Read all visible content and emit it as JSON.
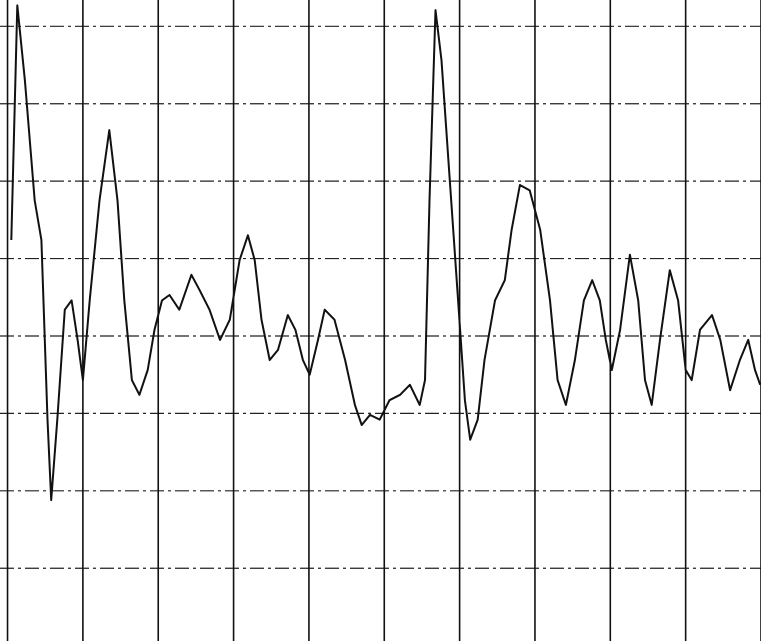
{
  "chart_data": {
    "type": "line",
    "color": "#111111",
    "grid": true,
    "xlim": [
      -0.1,
      10
    ],
    "ylim": [
      -3.94,
      4.34
    ],
    "xticks": [
      0,
      1,
      2,
      3,
      4,
      5,
      6,
      7,
      8,
      9,
      10
    ],
    "yticks": [
      -3,
      -2,
      -1,
      0,
      1,
      2,
      3,
      4
    ],
    "x": [
      0.05,
      0.13,
      0.23,
      0.36,
      0.45,
      0.53,
      0.58,
      0.66,
      0.76,
      0.85,
      0.93,
      1.0,
      1.09,
      1.22,
      1.35,
      1.46,
      1.55,
      1.65,
      1.75,
      1.86,
      1.95,
      2.05,
      2.15,
      2.28,
      2.44,
      2.55,
      2.68,
      2.82,
      2.95,
      3.08,
      3.19,
      3.28,
      3.37,
      3.48,
      3.59,
      3.72,
      3.82,
      3.92,
      4.01,
      4.12,
      4.21,
      4.34,
      4.48,
      4.61,
      4.7,
      4.81,
      4.94,
      5.07,
      5.21,
      5.34,
      5.47,
      5.54,
      5.6,
      5.68,
      5.76,
      5.87,
      5.98,
      6.07,
      6.14,
      6.24,
      6.33,
      6.47,
      6.6,
      6.69,
      6.8,
      6.93,
      7.07,
      7.2,
      7.3,
      7.41,
      7.53,
      7.65,
      7.76,
      7.86,
      7.94,
      8.02,
      8.13,
      8.26,
      8.37,
      8.46,
      8.55,
      8.66,
      8.79,
      8.9,
      9.0,
      9.08,
      9.19,
      9.35,
      9.46,
      9.59,
      9.72,
      9.83,
      9.92,
      9.99
    ],
    "values": [
      1.24,
      4.27,
      3.3,
      1.75,
      1.24,
      -1.08,
      -2.12,
      -1.08,
      0.34,
      0.46,
      -0.05,
      -0.57,
      0.46,
      1.75,
      2.66,
      1.75,
      0.46,
      -0.57,
      -0.76,
      -0.44,
      0.08,
      0.46,
      0.53,
      0.34,
      0.79,
      0.59,
      0.34,
      -0.05,
      0.21,
      0.98,
      1.3,
      0.98,
      0.21,
      -0.31,
      -0.18,
      0.27,
      0.08,
      -0.31,
      -0.5,
      -0.05,
      0.34,
      0.21,
      -0.31,
      -0.89,
      -1.15,
      -1.02,
      -1.08,
      -0.83,
      -0.76,
      -0.63,
      -0.89,
      -0.57,
      1.75,
      4.21,
      3.56,
      2.01,
      0.46,
      -0.83,
      -1.34,
      -1.08,
      -0.31,
      0.46,
      0.72,
      1.37,
      1.95,
      1.88,
      1.37,
      0.46,
      -0.57,
      -0.89,
      -0.31,
      0.46,
      0.72,
      0.46,
      -0.05,
      -0.44,
      0.08,
      1.05,
      0.46,
      -0.57,
      -0.89,
      -0.05,
      0.85,
      0.46,
      -0.44,
      -0.57,
      0.08,
      0.27,
      -0.05,
      -0.7,
      -0.31,
      -0.05,
      -0.44,
      -0.63
    ]
  }
}
